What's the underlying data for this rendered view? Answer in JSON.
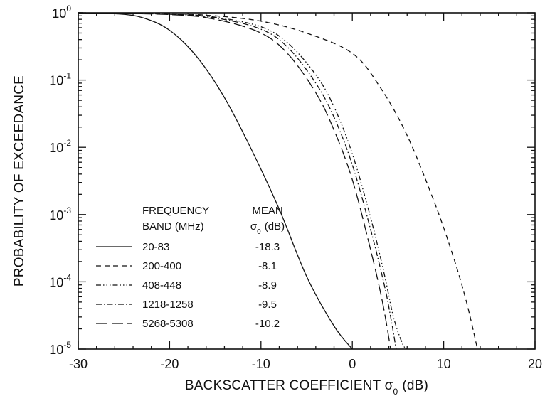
{
  "chart_data": {
    "type": "line",
    "xlabel": "BACKSCATTER COEFFICIENT σ",
    "xlabel_subscript": "0",
    "xlabel_unit": "(dB)",
    "ylabel": "PROBABILITY OF EXCEEDANCE",
    "yscale": "log",
    "xlim": [
      -30,
      20
    ],
    "ylim": [
      1e-05,
      1
    ],
    "x_ticks": [
      -30,
      -20,
      -10,
      0,
      10,
      20
    ],
    "x_tick_labels": [
      "-30",
      "-20",
      "-10",
      "0",
      "10",
      "20"
    ],
    "y_ticks": [
      {
        "value": 1,
        "base": "10",
        "exponent": "0"
      },
      {
        "value": 0.1,
        "base": "10",
        "exponent": "-1"
      },
      {
        "value": 0.01,
        "base": "10",
        "exponent": "-2"
      },
      {
        "value": 0.001,
        "base": "10",
        "exponent": "-3"
      },
      {
        "value": 0.0001,
        "base": "10",
        "exponent": "-4"
      },
      {
        "value": 1e-05,
        "base": "10",
        "exponent": "-5"
      }
    ],
    "grid": false,
    "legend": {
      "placement": "bottom-left",
      "header_band_1": "FREQUENCY",
      "header_band_2": "BAND (MHz)",
      "header_mean_1": "MEAN",
      "header_mean_2": "σ",
      "header_mean_2_subscript": "0",
      "header_mean_2_unit": "(dB)"
    },
    "series": [
      {
        "name": "20-83",
        "mean": "-18.3",
        "dash": "solid",
        "points": [
          [
            -30,
            1.0
          ],
          [
            -26,
            0.97
          ],
          [
            -23,
            0.85
          ],
          [
            -20,
            0.55
          ],
          [
            -17,
            0.22
          ],
          [
            -14,
            0.055
          ],
          [
            -11,
            0.009
          ],
          [
            -8,
            0.0012
          ],
          [
            -5,
            0.00012
          ],
          [
            -2,
            2.2e-05
          ],
          [
            0,
            1e-05
          ]
        ]
      },
      {
        "name": "200-400",
        "mean": "-8.1",
        "dash": "short-dash",
        "points": [
          [
            -30,
            1.0
          ],
          [
            -20,
            0.97
          ],
          [
            -15,
            0.9
          ],
          [
            -10,
            0.75
          ],
          [
            -5,
            0.5
          ],
          [
            0,
            0.25
          ],
          [
            3,
            0.08
          ],
          [
            6,
            0.015
          ],
          [
            9,
            0.0015
          ],
          [
            11,
            0.00025
          ],
          [
            12.5,
            5e-05
          ],
          [
            13.7,
            1e-05
          ]
        ]
      },
      {
        "name": "408-448",
        "mean": "-8.9",
        "dash": "dash-dot-dot-dot",
        "points": [
          [
            -30,
            1.0
          ],
          [
            -20,
            0.96
          ],
          [
            -15,
            0.86
          ],
          [
            -10,
            0.62
          ],
          [
            -7,
            0.35
          ],
          [
            -4,
            0.12
          ],
          [
            -2,
            0.04
          ],
          [
            0,
            0.008
          ],
          [
            2,
            0.0009
          ],
          [
            3.5,
            0.00013
          ],
          [
            4.5,
            3e-05
          ],
          [
            5.5,
            1.2e-05
          ],
          [
            6,
            1e-05
          ]
        ]
      },
      {
        "name": "1218-1258",
        "mean": "-9.5",
        "dash": "dash-dot",
        "points": [
          [
            -30,
            1.0
          ],
          [
            -20,
            0.95
          ],
          [
            -15,
            0.84
          ],
          [
            -10,
            0.57
          ],
          [
            -7,
            0.3
          ],
          [
            -4,
            0.09
          ],
          [
            -2,
            0.028
          ],
          [
            0,
            0.0055
          ],
          [
            2,
            0.0006
          ],
          [
            3.5,
            9e-05
          ],
          [
            4.2,
            3e-05
          ],
          [
            4.8,
            1e-05
          ]
        ]
      },
      {
        "name": "5268-5308",
        "mean": "-10.2",
        "dash": "long-dash",
        "points": [
          [
            -30,
            1.0
          ],
          [
            -20,
            0.94
          ],
          [
            -15,
            0.8
          ],
          [
            -10,
            0.5
          ],
          [
            -7,
            0.24
          ],
          [
            -4,
            0.065
          ],
          [
            -2,
            0.018
          ],
          [
            0,
            0.0033
          ],
          [
            2,
            0.0003
          ],
          [
            3.3,
            5e-05
          ],
          [
            4.2,
            1e-05
          ]
        ]
      }
    ]
  }
}
